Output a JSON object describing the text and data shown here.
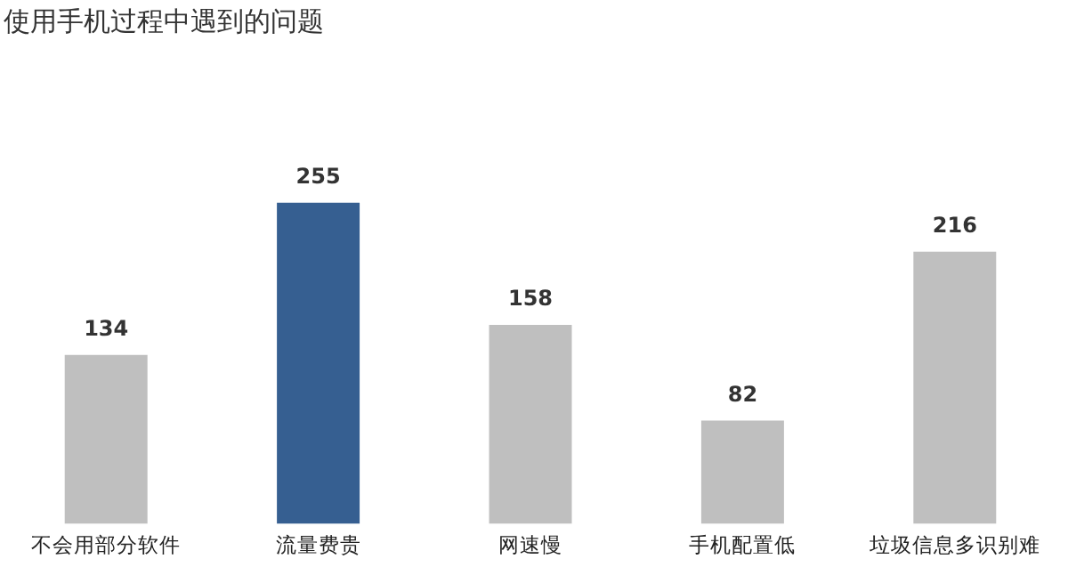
{
  "chart_data": {
    "type": "bar",
    "title": "使用手机过程中遇到的问题",
    "categories": [
      "不会用部分软件",
      "流量费贵",
      "网速慢",
      "手机配置低",
      "垃圾信息多识别难"
    ],
    "values": [
      134,
      255,
      158,
      82,
      216
    ],
    "colors": [
      "#bfbfbf",
      "#365f91",
      "#bfbfbf",
      "#bfbfbf",
      "#bfbfbf"
    ],
    "data_labels": true,
    "grid": false,
    "legend": false
  }
}
